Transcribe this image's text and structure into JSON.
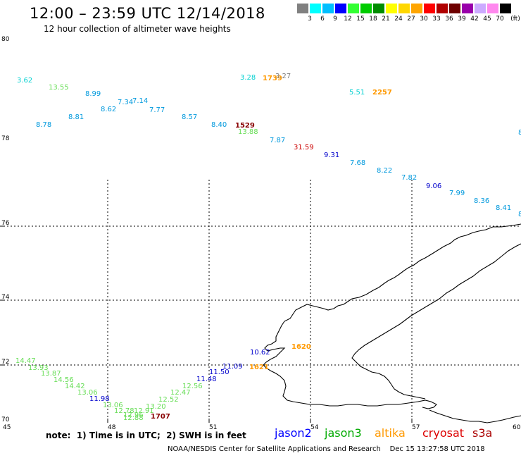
{
  "header": {
    "title": "12:00 – 23:59 UTC 12/14/2018",
    "subtitle": "12 hour collection of altimeter wave heights"
  },
  "color_scale": {
    "unit": "(ft)",
    "bins": [
      {
        "label": "3",
        "color": "#808080"
      },
      {
        "label": "6",
        "color": "#00ffff"
      },
      {
        "label": "9",
        "color": "#00bfff"
      },
      {
        "label": "12",
        "color": "#0000ff"
      },
      {
        "label": "15",
        "color": "#33ff33"
      },
      {
        "label": "18",
        "color": "#00cc00"
      },
      {
        "label": "21",
        "color": "#008c00"
      },
      {
        "label": "24",
        "color": "#ffff00"
      },
      {
        "label": "27",
        "color": "#ffd700"
      },
      {
        "label": "30",
        "color": "#ffa500"
      },
      {
        "label": "33",
        "color": "#ff0000"
      },
      {
        "label": "36",
        "color": "#b00000"
      },
      {
        "label": "39",
        "color": "#6e0000"
      },
      {
        "label": "42",
        "color": "#9900aa"
      },
      {
        "label": "45",
        "color": "#ccaaff"
      },
      {
        "label": "70",
        "color": "#ff88ee"
      },
      {
        "label": "",
        "color": "#000000"
      }
    ]
  },
  "axes": {
    "lon_ticks": [
      "45",
      "48",
      "51",
      "54",
      "57",
      "60"
    ],
    "lat_ticks": [
      "80",
      "78",
      "76",
      "74",
      "72",
      "70"
    ]
  },
  "wave_labels": [
    {
      "t": "3.62",
      "c": "#00d0d0"
    },
    {
      "t": "13.55",
      "c": "#66dd55"
    },
    {
      "t": "8.99",
      "c": "#0099dd"
    },
    {
      "t": "8.62",
      "c": "#0099dd"
    },
    {
      "t": "7.34",
      "c": "#0099dd"
    },
    {
      "t": "7.14",
      "c": "#0099dd"
    },
    {
      "t": "7.77",
      "c": "#0099dd"
    },
    {
      "t": "8.81",
      "c": "#0099dd"
    },
    {
      "t": "8.78",
      "c": "#0099dd"
    },
    {
      "t": "8.57",
      "c": "#0099dd"
    },
    {
      "t": "8.40",
      "c": "#0099dd"
    },
    {
      "t": "1529",
      "c": "#880000",
      "b": 1
    },
    {
      "t": "13.88",
      "c": "#66dd55"
    },
    {
      "t": "3.28",
      "c": "#00d0d0"
    },
    {
      "t": "1739",
      "c": "#ff9900",
      "b": 1
    },
    {
      "t": "3.27",
      "c": "#808080"
    },
    {
      "t": "5.51",
      "c": "#00d0d0"
    },
    {
      "t": "2257",
      "c": "#ff9900",
      "b": 1
    },
    {
      "t": "7.87",
      "c": "#0099dd"
    },
    {
      "t": "31.59",
      "c": "#cc0000"
    },
    {
      "t": "9.31",
      "c": "#0000cc"
    },
    {
      "t": "7.68",
      "c": "#0099dd"
    },
    {
      "t": "8.22",
      "c": "#0099dd"
    },
    {
      "t": "7.82",
      "c": "#0099dd"
    },
    {
      "t": "9.06",
      "c": "#0000cc"
    },
    {
      "t": "7.99",
      "c": "#0099dd"
    },
    {
      "t": "8.36",
      "c": "#0099dd"
    },
    {
      "t": "8.41",
      "c": "#0099dd"
    },
    {
      "t": "8",
      "c": "#0099dd"
    },
    {
      "t": "8",
      "c": "#0099dd"
    },
    {
      "t": "14.47",
      "c": "#66dd55"
    },
    {
      "t": "13.93",
      "c": "#66dd55"
    },
    {
      "t": "13.87",
      "c": "#66dd55"
    },
    {
      "t": "14.56",
      "c": "#66dd55"
    },
    {
      "t": "14.42",
      "c": "#66dd55"
    },
    {
      "t": "13.06",
      "c": "#66dd55"
    },
    {
      "t": "11.98",
      "c": "#0000cc"
    },
    {
      "t": "13.06",
      "c": "#66dd55"
    },
    {
      "t": "12.78",
      "c": "#66dd55"
    },
    {
      "t": "12.91",
      "c": "#66dd55"
    },
    {
      "t": "12.88",
      "c": "#66dd55"
    },
    {
      "t": "12.96",
      "c": "#66dd55"
    },
    {
      "t": "1707",
      "c": "#880000",
      "b": 1
    },
    {
      "t": "13.20",
      "c": "#66dd55"
    },
    {
      "t": "12.52",
      "c": "#66dd55"
    },
    {
      "t": "12.47",
      "c": "#66dd55"
    },
    {
      "t": "12.56",
      "c": "#66dd55"
    },
    {
      "t": "11.48",
      "c": "#0000cc"
    },
    {
      "t": "11.50",
      "c": "#0000cc"
    },
    {
      "t": "11.09",
      "c": "#0000cc"
    },
    {
      "t": "10.62",
      "c": "#0000cc"
    },
    {
      "t": "1621",
      "c": "#ff9900",
      "b": 1
    },
    {
      "t": "1620",
      "c": "#ff9900",
      "b": 1
    }
  ],
  "legend": {
    "note": "note:  1) Time is in UTC;  2) SWH is in feet",
    "satellites": [
      {
        "name": "jason2",
        "color": "#0000ff"
      },
      {
        "name": "jason3",
        "color": "#00aa00"
      },
      {
        "name": "altika",
        "color": "#ff9900"
      },
      {
        "name": "cryosat",
        "color": "#dd0000"
      },
      {
        "name": "s3a",
        "color": "#aa0000"
      }
    ]
  },
  "footer": {
    "credit": "NOAA/NESDIS Center for Satellite Applications and Research",
    "timestamp": "Dec 15 13:27:58 UTC 2018"
  }
}
